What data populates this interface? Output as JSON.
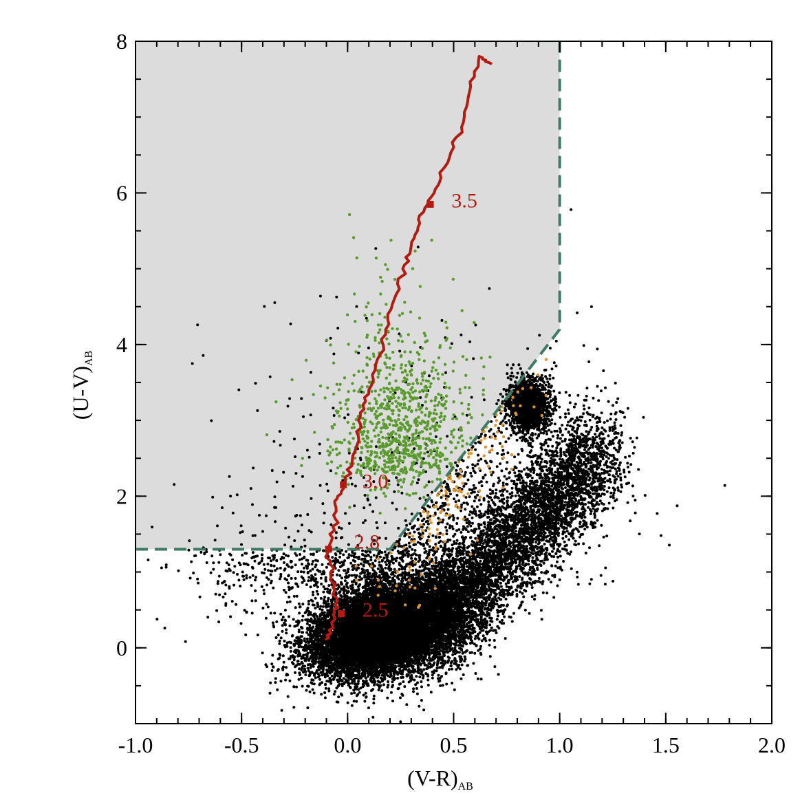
{
  "chart_data": {
    "type": "scatter",
    "xlabel_main": "(V-R)",
    "xlabel_sub": "AB",
    "ylabel_main": "(U-V)",
    "ylabel_sub": "AB",
    "xlim": [
      -1.0,
      2.0
    ],
    "ylim": [
      -1.0,
      8.0
    ],
    "x_ticks": [
      "-1.0",
      "-0.5",
      "0.0",
      "0.5",
      "1.0",
      "1.5",
      "2.0"
    ],
    "y_ticks": [
      "0",
      "2",
      "4",
      "6",
      "8"
    ],
    "grid": false,
    "legend": "none",
    "colors": {
      "shade": "#dcdcdc",
      "boundary": "#3f7a64",
      "track": "#b31b10",
      "field_points": "#000000",
      "green_points": "#5a9a2e",
      "orange_points": "#dd9430"
    },
    "selection_region": {
      "style": "dashed",
      "vertices": [
        [
          -1.0,
          1.3
        ],
        [
          0.2,
          1.3
        ],
        [
          1.0,
          4.2
        ],
        [
          1.0,
          8.0
        ]
      ]
    },
    "redshift_track": {
      "points": [
        [
          -0.1,
          0.1
        ],
        [
          -0.08,
          0.2
        ],
        [
          -0.06,
          0.4
        ],
        [
          -0.05,
          0.6
        ],
        [
          -0.07,
          0.8
        ],
        [
          -0.08,
          1.0
        ],
        [
          -0.09,
          1.3
        ],
        [
          -0.07,
          1.6
        ],
        [
          -0.06,
          1.9
        ],
        [
          -0.02,
          2.1
        ],
        [
          0.02,
          2.4
        ],
        [
          0.05,
          2.8
        ],
        [
          0.06,
          3.1
        ],
        [
          0.1,
          3.4
        ],
        [
          0.14,
          3.8
        ],
        [
          0.18,
          4.2
        ],
        [
          0.22,
          4.6
        ],
        [
          0.26,
          5.0
        ],
        [
          0.3,
          5.3
        ],
        [
          0.34,
          5.6
        ],
        [
          0.38,
          5.9
        ],
        [
          0.44,
          6.2
        ],
        [
          0.5,
          6.6
        ],
        [
          0.55,
          7.0
        ],
        [
          0.58,
          7.4
        ],
        [
          0.62,
          7.8
        ],
        [
          0.68,
          7.7
        ]
      ],
      "labels": [
        {
          "text": "2.5",
          "x": 0.07,
          "y": 0.5
        },
        {
          "text": "2.8",
          "x": 0.03,
          "y": 1.4
        },
        {
          "text": "3.0",
          "x": 0.07,
          "y": 2.2
        },
        {
          "text": "3.5",
          "x": 0.49,
          "y": 5.9
        }
      ]
    },
    "series": [
      {
        "values": [],
        "count": 22000,
        "distribution": "field population, dense core near (V-R)=0.2, (U-V)=0.3 with a red branch to (V-R)=1.2, (U-V)=2.5"
      },
      {
        "values": [],
        "count": 900,
        "distribution": "green, inside selection region, centered near (V-R)=0.25, (U-V)=2.3"
      },
      {
        "values": [],
        "count": 140,
        "distribution": "orange, just below boundary near (V-R)=0.5, (U-V)=1.4"
      }
    ]
  }
}
